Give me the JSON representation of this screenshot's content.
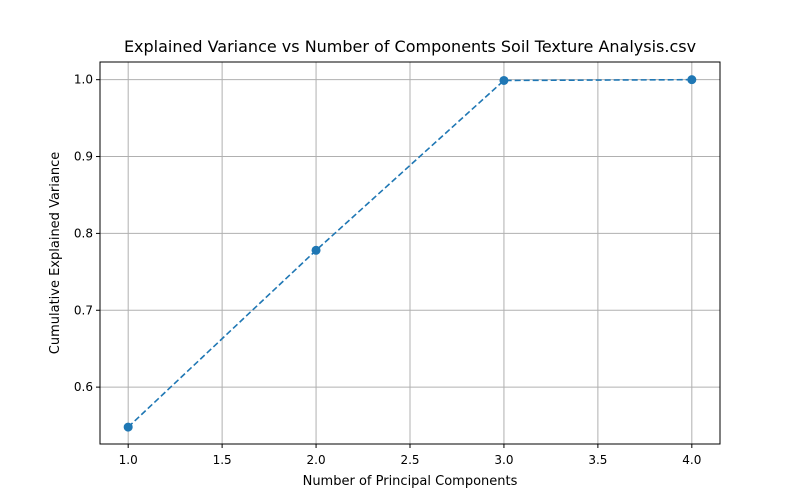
{
  "chart_data": {
    "type": "line",
    "title": "Explained Variance vs Number of Components Soil Texture Analysis.csv",
    "xlabel": "Number of Principal Components",
    "ylabel": "Cumulative Explained Variance",
    "xlim": [
      0.85,
      4.15
    ],
    "ylim": [
      0.526,
      1.023
    ],
    "x_ticks": [
      1.0,
      1.5,
      2.0,
      2.5,
      3.0,
      3.5,
      4.0
    ],
    "x_tick_labels": [
      "1.0",
      "1.5",
      "2.0",
      "2.5",
      "3.0",
      "3.5",
      "4.0"
    ],
    "y_ticks": [
      0.6,
      0.7,
      0.8,
      0.9,
      1.0
    ],
    "y_tick_labels": [
      "0.6",
      "0.7",
      "0.8",
      "0.9",
      "1.0"
    ],
    "grid": true,
    "series": [
      {
        "name": "Cumulative Explained Variance",
        "x": [
          1,
          2,
          3,
          4
        ],
        "values": [
          0.548,
          0.778,
          0.999,
          1.0
        ],
        "color": "#1f77b4",
        "line_style": "dashed",
        "marker": "circle"
      }
    ]
  }
}
